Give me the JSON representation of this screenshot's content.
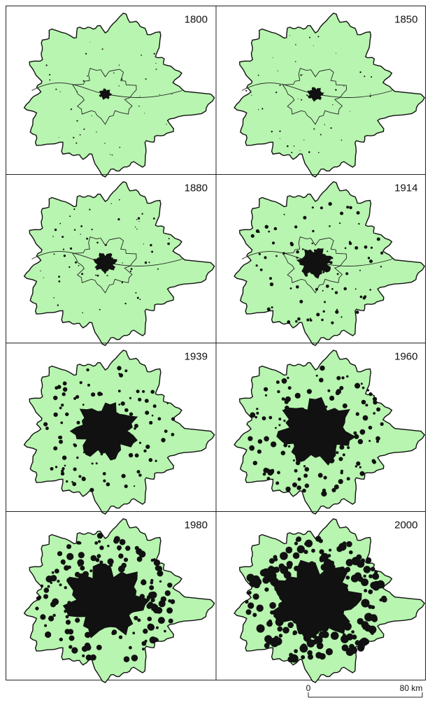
{
  "panels": [
    {
      "year": "1800"
    },
    {
      "year": "1850"
    },
    {
      "year": "1880"
    },
    {
      "year": "1914"
    },
    {
      "year": "1939"
    },
    {
      "year": "1960"
    },
    {
      "year": "1980"
    },
    {
      "year": "2000"
    }
  ],
  "scale_bar": {
    "start": "0",
    "end": "80 km"
  }
}
